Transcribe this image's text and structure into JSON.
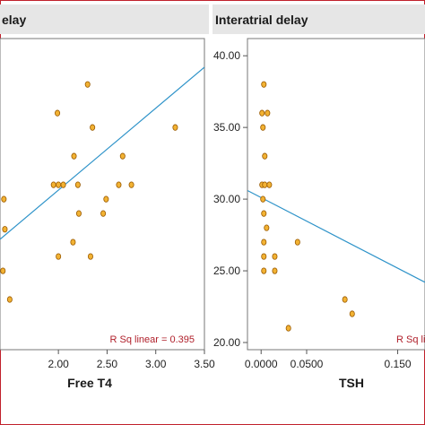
{
  "chart_data": [
    {
      "type": "scatter",
      "title": "elay",
      "xlabel": "Free T4",
      "ylabel": "",
      "xlim": [
        1.4,
        3.5
      ],
      "ylim": [
        19.5,
        41.2
      ],
      "x_ticks": [
        "2.00",
        "2.50",
        "3.00",
        "3.50"
      ],
      "x_tick_values": [
        2.0,
        2.5,
        3.0,
        3.5
      ],
      "y_ticks": [],
      "y_tick_values": [],
      "points": [
        {
          "x": 2.3,
          "y": 38.0
        },
        {
          "x": 1.99,
          "y": 36.0
        },
        {
          "x": 2.35,
          "y": 35.0
        },
        {
          "x": 3.2,
          "y": 35.0
        },
        {
          "x": 2.16,
          "y": 33.0
        },
        {
          "x": 2.66,
          "y": 33.0
        },
        {
          "x": 1.95,
          "y": 31.0
        },
        {
          "x": 2.0,
          "y": 31.0
        },
        {
          "x": 2.05,
          "y": 31.0
        },
        {
          "x": 2.2,
          "y": 31.0
        },
        {
          "x": 2.62,
          "y": 31.0
        },
        {
          "x": 2.75,
          "y": 31.0
        },
        {
          "x": 2.49,
          "y": 30.0
        },
        {
          "x": 1.44,
          "y": 30.0
        },
        {
          "x": 2.21,
          "y": 29.0
        },
        {
          "x": 2.46,
          "y": 29.0
        },
        {
          "x": 1.45,
          "y": 27.9
        },
        {
          "x": 2.15,
          "y": 27.0
        },
        {
          "x": 2.0,
          "y": 26.0
        },
        {
          "x": 2.33,
          "y": 26.0
        },
        {
          "x": 1.43,
          "y": 25.0
        },
        {
          "x": 1.5,
          "y": 23.0
        }
      ],
      "fit_line": {
        "x": [
          1.4,
          3.5
        ],
        "y": [
          27.2,
          39.2
        ]
      },
      "annotation": "R Sq linear = 0.395",
      "colors": {
        "point_fill": "#f2b233",
        "point_stroke": "#9a5a00",
        "fit_line": "#2e93c9",
        "title_strip": "#e6e6e6",
        "frame": "#c0202b"
      }
    },
    {
      "type": "scatter",
      "title": "Interatrial delay",
      "xlabel": "TSH",
      "ylabel": "",
      "xlim": [
        -0.015,
        0.18
      ],
      "ylim": [
        19.5,
        41.2
      ],
      "x_ticks": [
        "0.0000",
        "0.0500",
        "0.150"
      ],
      "x_tick_values": [
        0.0,
        0.05,
        0.15
      ],
      "y_ticks": [
        "20.00",
        "25.00",
        "30.00",
        "35.00",
        "40.00"
      ],
      "y_tick_values": [
        20,
        25,
        30,
        35,
        40
      ],
      "points": [
        {
          "x": 0.003,
          "y": 38.0
        },
        {
          "x": 0.001,
          "y": 36.0
        },
        {
          "x": 0.007,
          "y": 36.0
        },
        {
          "x": 0.002,
          "y": 35.0
        },
        {
          "x": 0.004,
          "y": 33.0
        },
        {
          "x": 0.001,
          "y": 31.0
        },
        {
          "x": 0.004,
          "y": 31.0
        },
        {
          "x": 0.009,
          "y": 31.0
        },
        {
          "x": 0.002,
          "y": 30.0
        },
        {
          "x": 0.003,
          "y": 29.0
        },
        {
          "x": 0.006,
          "y": 28.0
        },
        {
          "x": 0.003,
          "y": 27.0
        },
        {
          "x": 0.04,
          "y": 27.0
        },
        {
          "x": 0.003,
          "y": 26.0
        },
        {
          "x": 0.015,
          "y": 26.0
        },
        {
          "x": 0.003,
          "y": 25.0
        },
        {
          "x": 0.015,
          "y": 25.0
        },
        {
          "x": 0.03,
          "y": 21.0
        },
        {
          "x": 0.092,
          "y": 23.0
        },
        {
          "x": 0.1,
          "y": 22.0
        }
      ],
      "fit_line": {
        "x": [
          -0.015,
          0.18
        ],
        "y": [
          30.6,
          24.2
        ]
      },
      "annotation": "R Sq li",
      "colors": {
        "point_fill": "#f2b233",
        "point_stroke": "#9a5a00",
        "fit_line": "#2e93c9",
        "title_strip": "#e6e6e6",
        "frame": "#c0202b"
      }
    }
  ]
}
